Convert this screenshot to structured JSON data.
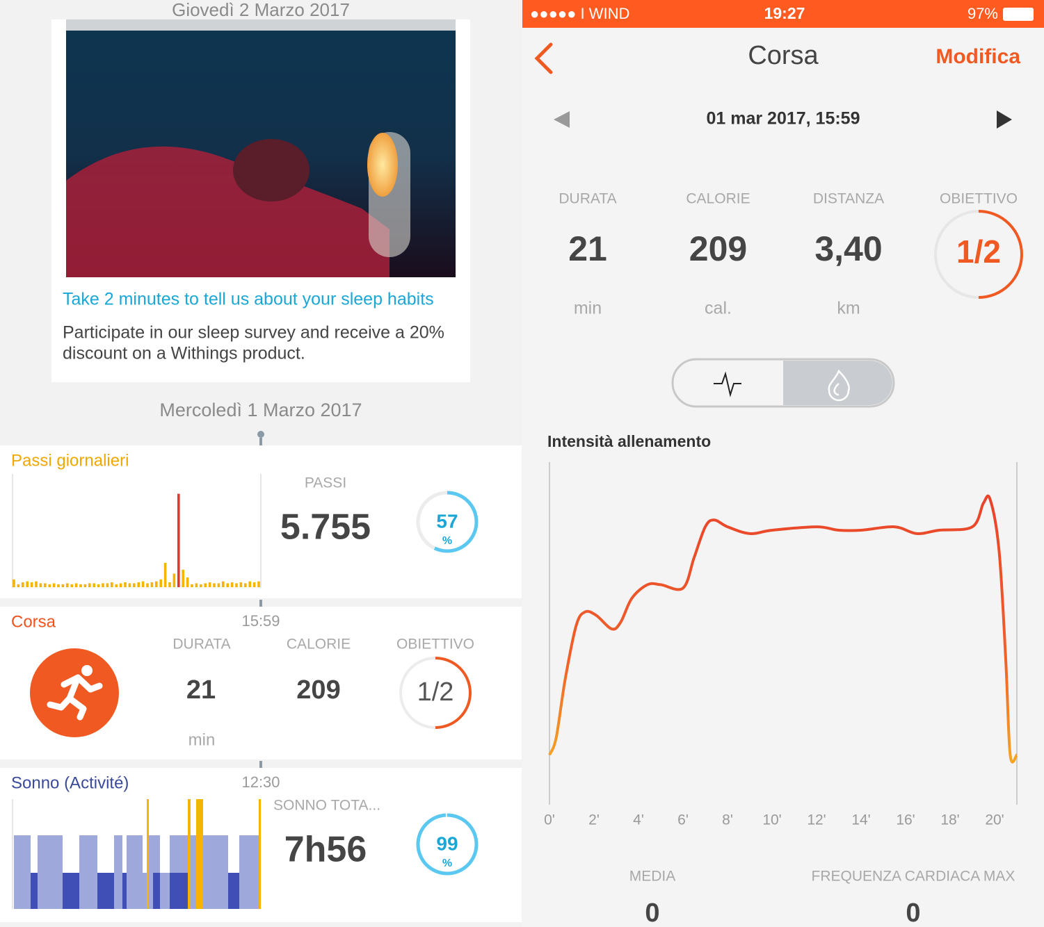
{
  "feed": {
    "date_top": "Giovedì 2 Marzo 2017",
    "promo": {
      "title": "Take 2 minutes to tell us about your sleep habits",
      "body": [
        "Participate in our sleep survey and receive a 20%",
        "discount on a Withings product."
      ]
    },
    "date_2": "Mercoledì 1 Marzo 2017",
    "steps": {
      "title": "Passi giornalieri",
      "label": "PASSI",
      "value": "5.755",
      "percent": 57,
      "percent_sign": "%",
      "chart": {
        "type": "bar",
        "ylim": [
          0,
          100
        ],
        "color": "#f5b400",
        "highlight_color": "#e0372f",
        "values": [
          8,
          3,
          5,
          6,
          5,
          6,
          4,
          4,
          3,
          4,
          3,
          3,
          4,
          3,
          4,
          3,
          3,
          4,
          4,
          3,
          4,
          4,
          5,
          3,
          4,
          5,
          4,
          4,
          5,
          6,
          4,
          5,
          6,
          8,
          25,
          5,
          14,
          96,
          18,
          10,
          3,
          4,
          3,
          4,
          5,
          4,
          4,
          6,
          4,
          5,
          4,
          5,
          4,
          6,
          5,
          6
        ]
      }
    },
    "run": {
      "title": "Corsa",
      "time": "15:59",
      "stats": [
        {
          "label": "DURATA",
          "value": "21",
          "unit": "min"
        },
        {
          "label": "CALORIE",
          "value": "209"
        }
      ],
      "goal_label": "OBIETTIVO",
      "goal": "1/2"
    },
    "sleep": {
      "title": "Sonno (Activité)",
      "time": "12:30",
      "label": "SONNO TOTA...",
      "value": "7h56",
      "percent": 99,
      "percent_sign": "%"
    }
  },
  "detail": {
    "status": {
      "carrier": "●●●●● I WIND",
      "time": "19:27",
      "battery": "97%"
    },
    "nav": {
      "title": "Corsa",
      "edit": "Modifica"
    },
    "date": "01 mar 2017, 15:59",
    "stats": [
      {
        "label": "DURATA",
        "value": "21",
        "unit": "min"
      },
      {
        "label": "CALORIE",
        "value": "209",
        "unit": "cal."
      },
      {
        "label": "DISTANZA",
        "value": "3,40",
        "unit": "km"
      }
    ],
    "goal_label": "OBIETTIVO",
    "goal": "1/2",
    "chart": {
      "type": "line",
      "title": "Intensità allenamento",
      "x": [
        0,
        0.3,
        0.7,
        1.2,
        1.6,
        2.1,
        2.8,
        3.2,
        3.7,
        4.4,
        5,
        6,
        6.5,
        7,
        7.4,
        8,
        9,
        10,
        12,
        13,
        14,
        15.5,
        16.5,
        17.5,
        19,
        19.5,
        19.8,
        20.2,
        20.5,
        20.7,
        21
      ],
      "values": [
        14,
        19,
        36,
        52,
        56,
        55,
        51,
        53,
        60,
        64,
        64,
        63,
        72,
        81,
        83,
        81,
        79,
        80,
        81,
        80,
        80,
        81,
        79,
        80,
        81,
        88,
        89,
        74,
        42,
        14,
        14
      ],
      "xlim": [
        0,
        21
      ],
      "ylim": [
        0,
        100
      ],
      "xticks": [
        {
          "value": 0,
          "label": "0'"
        },
        {
          "value": 2,
          "label": "2'"
        },
        {
          "value": 4,
          "label": "4'"
        },
        {
          "value": 6,
          "label": "6'"
        },
        {
          "value": 8,
          "label": "8'"
        },
        {
          "value": 10,
          "label": "10'"
        },
        {
          "value": 12,
          "label": "12'"
        },
        {
          "value": 14,
          "label": "14'"
        },
        {
          "value": 16,
          "label": "16'"
        },
        {
          "value": 18,
          "label": "18'"
        },
        {
          "value": 20,
          "label": "20'"
        }
      ]
    },
    "footer": [
      {
        "label": "MEDIA",
        "value": "0"
      },
      {
        "label": "FREQUENZA CARDIACA MAX",
        "value": "0"
      }
    ]
  }
}
